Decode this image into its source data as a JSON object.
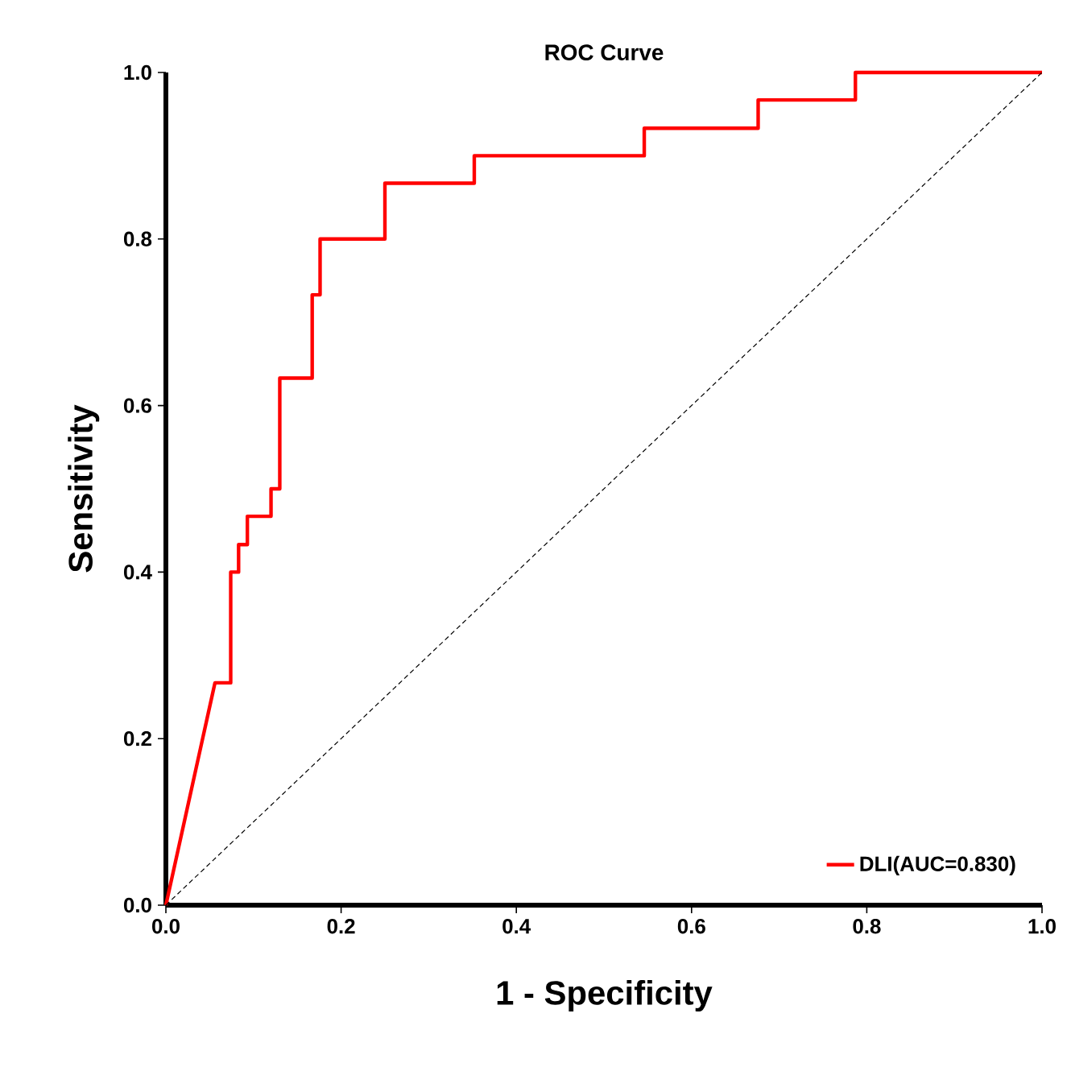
{
  "chart_data": {
    "type": "line",
    "title": "ROC Curve",
    "xlabel": "1 - Specificity",
    "ylabel": "Sensitivity",
    "xlim": [
      0,
      1
    ],
    "ylim": [
      0,
      1
    ],
    "xticks": [
      {
        "value": 0,
        "label": "0.0"
      },
      {
        "value": 0.2,
        "label": "0.2"
      },
      {
        "value": 0.4,
        "label": "0.4"
      },
      {
        "value": 0.6,
        "label": "0.6"
      },
      {
        "value": 0.8,
        "label": "0.8"
      },
      {
        "value": 1,
        "label": "1.0"
      }
    ],
    "yticks": [
      {
        "value": 0,
        "label": "0.0"
      },
      {
        "value": 0.2,
        "label": "0.2"
      },
      {
        "value": 0.4,
        "label": "0.4"
      },
      {
        "value": 0.6,
        "label": "0.6"
      },
      {
        "value": 0.8,
        "label": "0.8"
      },
      {
        "value": 1,
        "label": "1.0"
      }
    ],
    "grid": false,
    "legend": "bottom right",
    "marker": "none",
    "series": [
      {
        "name": "DLI(AUC=0.830)",
        "color": "#ff0000",
        "line_style": "solid",
        "x": [
          0,
          0.056,
          0.074,
          0.074,
          0.083,
          0.083,
          0.093,
          0.093,
          0.12,
          0.12,
          0.13,
          0.13,
          0.167,
          0.167,
          0.176,
          0.176,
          0.25,
          0.25,
          0.352,
          0.352,
          0.546,
          0.546,
          0.676,
          0.676,
          0.787,
          0.787,
          1
        ],
        "values": [
          0,
          0.267,
          0.267,
          0.4,
          0.4,
          0.433,
          0.433,
          0.467,
          0.467,
          0.5,
          0.5,
          0.633,
          0.633,
          0.733,
          0.733,
          0.8,
          0.8,
          0.867,
          0.867,
          0.9,
          0.9,
          0.933,
          0.933,
          0.967,
          0.967,
          1,
          1
        ]
      },
      {
        "color": "#000000",
        "line_style": "dashed",
        "x": [
          0,
          1
        ],
        "values": [
          0,
          1
        ]
      }
    ]
  }
}
